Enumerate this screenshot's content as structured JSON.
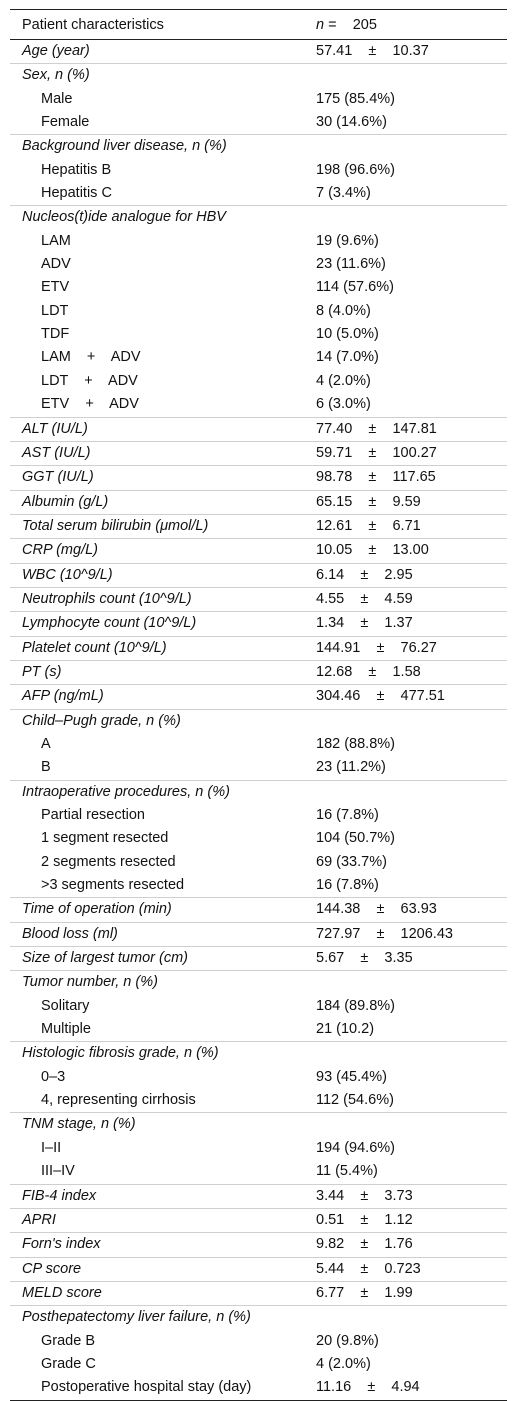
{
  "header": {
    "label": "Patient characteristics",
    "n_symbol": "n",
    "n_value": "=    205"
  },
  "rows": [
    {
      "label": "Age (year)",
      "value": "57.41    ±    10.37",
      "style": "it"
    },
    {
      "label": "Sex, n (%)",
      "value": "",
      "style": "it"
    },
    {
      "label": "Male",
      "value": "175 (85.4%)",
      "style": "sub"
    },
    {
      "label": "Female",
      "value": "30 (14.6%)",
      "style": "sub"
    },
    {
      "label": "Background liver disease, n (%)",
      "value": "",
      "style": "it"
    },
    {
      "label": "Hepatitis B",
      "value": "198 (96.6%)",
      "style": "sub"
    },
    {
      "label": "Hepatitis C",
      "value": "7 (3.4%)",
      "style": "sub"
    },
    {
      "label": "Nucleos(t)ide analogue for HBV",
      "value": "",
      "style": "it"
    },
    {
      "label": "LAM",
      "value": "19 (9.6%)",
      "style": "sub"
    },
    {
      "label": "ADV",
      "value": "23 (11.6%)",
      "style": "sub"
    },
    {
      "label": "ETV",
      "value": "114 (57.6%)",
      "style": "sub"
    },
    {
      "label": "LDT",
      "value": "8 (4.0%)",
      "style": "sub"
    },
    {
      "label": "TDF",
      "value": "10 (5.0%)",
      "style": "sub"
    },
    {
      "label": "LAM    +    ADV",
      "value": "14 (7.0%)",
      "style": "sub"
    },
    {
      "label": "LDT    +    ADV",
      "value": "4 (2.0%)",
      "style": "sub"
    },
    {
      "label": "ETV    +    ADV",
      "value": "6 (3.0%)",
      "style": "sub"
    },
    {
      "label": "ALT (IU/L)",
      "value": "77.40    ±    147.81",
      "style": "it"
    },
    {
      "label": "AST (IU/L)",
      "value": "59.71    ±    100.27",
      "style": "it"
    },
    {
      "label": "GGT (IU/L)",
      "value": "98.78    ±    117.65",
      "style": "it"
    },
    {
      "label": "Albumin (g/L)",
      "value": "65.15    ±    9.59",
      "style": "it"
    },
    {
      "label": "Total serum bilirubin (μmol/L)",
      "value": "12.61    ±    6.71",
      "style": "it"
    },
    {
      "label": "CRP (mg/L)",
      "value": "10.05    ±    13.00",
      "style": "it"
    },
    {
      "label": "WBC (10^9/L)",
      "value": "6.14    ±    2.95",
      "style": "it"
    },
    {
      "label": "Neutrophils count (10^9/L)",
      "value": "4.55    ±    4.59",
      "style": "it"
    },
    {
      "label": "Lymphocyte count (10^9/L)",
      "value": "1.34    ±    1.37",
      "style": "it"
    },
    {
      "label": "Platelet count (10^9/L)",
      "value": "144.91    ±    76.27",
      "style": "it"
    },
    {
      "label": "PT (s)",
      "value": "12.68    ±    1.58",
      "style": "it"
    },
    {
      "label": "AFP (ng/mL)",
      "value": "304.46    ±    477.51",
      "style": "it"
    },
    {
      "label": "Child–Pugh grade, n (%)",
      "value": "",
      "style": "it"
    },
    {
      "label": "A",
      "value": "182 (88.8%)",
      "style": "sub"
    },
    {
      "label": "B",
      "value": "23 (11.2%)",
      "style": "sub"
    },
    {
      "label": "Intraoperative procedures, n (%)",
      "value": "",
      "style": "it"
    },
    {
      "label": "Partial resection",
      "value": "16 (7.8%)",
      "style": "sub"
    },
    {
      "label": "1 segment resected",
      "value": "104 (50.7%)",
      "style": "sub"
    },
    {
      "label": "2 segments resected",
      "value": "69 (33.7%)",
      "style": "sub"
    },
    {
      "label": ">3 segments resected",
      "value": "16 (7.8%)",
      "style": "sub"
    },
    {
      "label": "Time of operation (min)",
      "value": "144.38    ±    63.93",
      "style": "it"
    },
    {
      "label": "Blood loss (ml)",
      "value": "727.97    ±    1206.43",
      "style": "it"
    },
    {
      "label": "Size of largest tumor (cm)",
      "value": "5.67    ±    3.35",
      "style": "it"
    },
    {
      "label": "Tumor number, n (%)",
      "value": "",
      "style": "it"
    },
    {
      "label": "Solitary",
      "value": "184 (89.8%)",
      "style": "sub"
    },
    {
      "label": "Multiple",
      "value": "21 (10.2)",
      "style": "sub"
    },
    {
      "label": "Histologic fibrosis grade, n (%)",
      "value": "",
      "style": "it"
    },
    {
      "label": "0–3",
      "value": "93 (45.4%)",
      "style": "sub"
    },
    {
      "label": "4, representing cirrhosis",
      "value": "112 (54.6%)",
      "style": "sub"
    },
    {
      "label": "TNM stage, n (%)",
      "value": "",
      "style": "it"
    },
    {
      "label": "I–II",
      "value": "194 (94.6%)",
      "style": "sub"
    },
    {
      "label": "III–IV",
      "value": "11 (5.4%)",
      "style": "sub"
    },
    {
      "label": "FIB-4 index",
      "value": "3.44    ±    3.73",
      "style": "it"
    },
    {
      "label": "APRI",
      "value": "0.51    ±    1.12",
      "style": "it"
    },
    {
      "label": "Forn's index",
      "value": "9.82    ±    1.76",
      "style": "it"
    },
    {
      "label": "CP score",
      "value": "5.44    ±    0.723",
      "style": "it"
    },
    {
      "label": "MELD score",
      "value": "6.77    ±    1.99",
      "style": "it"
    },
    {
      "label": "Posthepatectomy liver failure, n (%)",
      "value": "",
      "style": "it"
    },
    {
      "label": "Grade B",
      "value": "20 (9.8%)",
      "style": "sub"
    },
    {
      "label": "Grade C",
      "value": "4 (2.0%)",
      "style": "sub"
    },
    {
      "label": "Postoperative hospital stay (day)",
      "value": "11.16    ±    4.94",
      "style": "sub"
    }
  ]
}
